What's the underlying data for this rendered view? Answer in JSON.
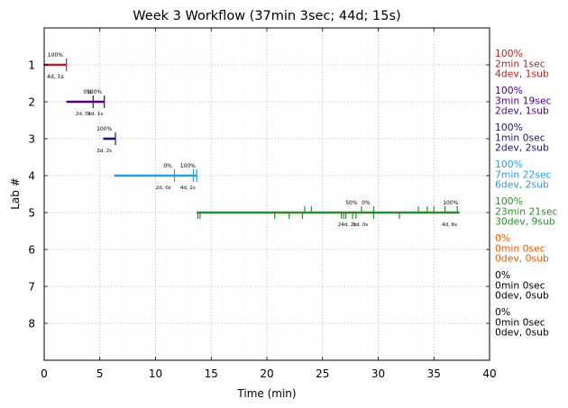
{
  "chart_data": {
    "type": "timeline",
    "title": "Week 3 Workflow (37min 3sec; 44d; 15s)",
    "xlabel": "Time (min)",
    "ylabel": "Lab #",
    "xlim": [
      0,
      40
    ],
    "ylim": [
      0,
      9
    ],
    "x_ticks": [
      0,
      5,
      10,
      15,
      20,
      25,
      30,
      35,
      40
    ],
    "y_ticks": [
      1,
      2,
      3,
      4,
      5,
      6,
      7,
      8
    ],
    "grid": true,
    "labs": [
      {
        "lab": 1,
        "color": "#b22222",
        "segments": [
          {
            "start": 0.0,
            "end": 2.0
          }
        ],
        "ticks": [
          2.0
        ],
        "annotations": [
          {
            "x": 1.0,
            "y": 0.78,
            "text": "100%",
            "size": 6
          },
          {
            "x": 1.0,
            "y": 1.36,
            "text": "4d, 1s",
            "size": 6
          }
        ],
        "summary": [
          "100%",
          "2min 1sec",
          "4dev, 1sub"
        ]
      },
      {
        "lab": 2,
        "color": "#4b0082",
        "segments": [
          {
            "start": 2.0,
            "end": 5.4
          }
        ],
        "ticks": [
          4.4,
          5.4
        ],
        "annotations": [
          {
            "x": 3.9,
            "y": 1.78,
            "text": "0%",
            "size": 6
          },
          {
            "x": 4.5,
            "y": 1.78,
            "text": "100%",
            "size": 6
          },
          {
            "x": 3.5,
            "y": 2.36,
            "text": "2d, 0s",
            "size": 5.5
          },
          {
            "x": 4.6,
            "y": 2.36,
            "text": "2d, 1s",
            "size": 5.5
          }
        ],
        "summary": [
          "100%",
          "3min 19sec",
          "2dev, 1sub"
        ]
      },
      {
        "lab": 3,
        "color": "#191970",
        "segments": [
          {
            "start": 5.3,
            "end": 6.4
          }
        ],
        "ticks": [
          6.4
        ],
        "annotations": [
          {
            "x": 5.4,
            "y": 2.78,
            "text": "100%",
            "size": 6
          },
          {
            "x": 5.4,
            "y": 3.36,
            "text": "2d, 2s",
            "size": 5.5
          }
        ],
        "summary": [
          "100%",
          "1min 0sec",
          "2dev, 2sub"
        ]
      },
      {
        "lab": 4,
        "color": "#2d9cdb",
        "segments": [
          {
            "start": 6.3,
            "end": 13.7
          }
        ],
        "ticks": [
          11.7,
          13.4,
          13.7
        ],
        "annotations": [
          {
            "x": 11.1,
            "y": 3.78,
            "text": "0%",
            "size": 6
          },
          {
            "x": 12.9,
            "y": 3.78,
            "text": "100%",
            "size": 6
          },
          {
            "x": 10.7,
            "y": 4.36,
            "text": "2d, 0s",
            "size": 5.5
          },
          {
            "x": 12.9,
            "y": 4.36,
            "text": "4d, 2s",
            "size": 5.5
          }
        ],
        "summary": [
          "100%",
          "7min 22sec",
          "6dev, 2sub"
        ]
      },
      {
        "lab": 5,
        "color": "#2e8b2e",
        "segments": [
          {
            "start": 13.7,
            "end": 37.3
          }
        ],
        "ticks_up": [
          23.4,
          24.0,
          28.5,
          29.6,
          33.6,
          34.4,
          35.0,
          36.0,
          37.1
        ],
        "ticks_down": [
          13.8,
          14.0,
          20.7,
          22.0,
          23.2,
          26.7,
          26.9,
          27.1,
          27.7,
          28.0,
          29.6,
          31.9
        ],
        "annotations": [
          {
            "x": 27.6,
            "y": 4.78,
            "text": "50%",
            "size": 6
          },
          {
            "x": 28.9,
            "y": 4.78,
            "text": "0%",
            "size": 6
          },
          {
            "x": 36.5,
            "y": 4.78,
            "text": "100%",
            "size": 6
          },
          {
            "x": 27.2,
            "y": 5.36,
            "text": "24d, 2s",
            "size": 5.5
          },
          {
            "x": 28.4,
            "y": 5.36,
            "text": "2d, 0s",
            "size": 5.5
          },
          {
            "x": 36.4,
            "y": 5.36,
            "text": "4d, 6s",
            "size": 5.5
          }
        ],
        "summary": [
          "100%",
          "23min 21sec",
          "30dev, 9sub"
        ]
      },
      {
        "lab": 6,
        "color": "#e65c00",
        "segments": [],
        "ticks": [],
        "annotations": [],
        "summary": [
          "0%",
          "0min 0sec",
          "0dev, 0sub"
        ]
      },
      {
        "lab": 7,
        "color": "#000000",
        "segments": [],
        "ticks": [],
        "annotations": [],
        "summary": [
          "0%",
          "0min 0sec",
          "0dev, 0sub"
        ]
      },
      {
        "lab": 8,
        "color": "#000000",
        "segments": [],
        "ticks": [],
        "annotations": [],
        "summary": [
          "0%",
          "0min 0sec",
          "0dev, 0sub"
        ]
      }
    ]
  }
}
